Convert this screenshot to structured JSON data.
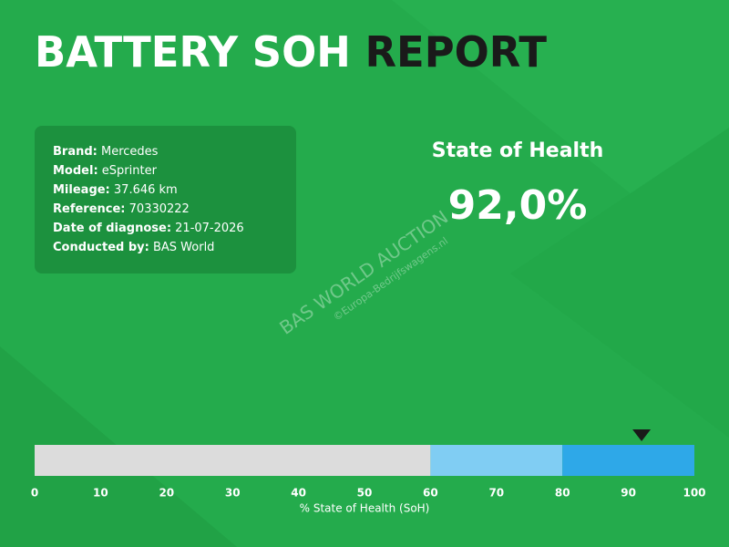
{
  "header": {
    "title_main": "BATTERY SOH",
    "title_accent": "REPORT"
  },
  "info": [
    {
      "label": "Brand:",
      "value": "Mercedes"
    },
    {
      "label": "Model:",
      "value": "eSprinter"
    },
    {
      "label": "Mileage:",
      "value": "37.646 km"
    },
    {
      "label": "Reference:",
      "value": "70330222"
    },
    {
      "label": "Date of diagnose:",
      "value": "21-07-2026"
    },
    {
      "label": "Conducted by:",
      "value": "BAS World"
    }
  ],
  "watermark": {
    "main": "BAS WORLD AUCTION",
    "sub": "©Europa-Bedrijfswagens.nl"
  },
  "chart_data": {
    "type": "gauge",
    "title": "State of Health",
    "values": [
      92
    ],
    "value_labels": [
      "92,0%"
    ],
    "bands": [
      {
        "from": 0,
        "to": 60,
        "color": "#dcdcdc"
      },
      {
        "from": 60,
        "to": 80,
        "color": "#80cdf3"
      },
      {
        "from": 80,
        "to": 100,
        "color": "#2ea8e8"
      }
    ],
    "marker_color": "#1a1a1a",
    "xlim": [
      0,
      100
    ],
    "xticks": [
      0,
      10,
      20,
      30,
      40,
      50,
      60,
      70,
      80,
      90,
      100
    ],
    "xlabel": "% State of Health (SoH)"
  }
}
